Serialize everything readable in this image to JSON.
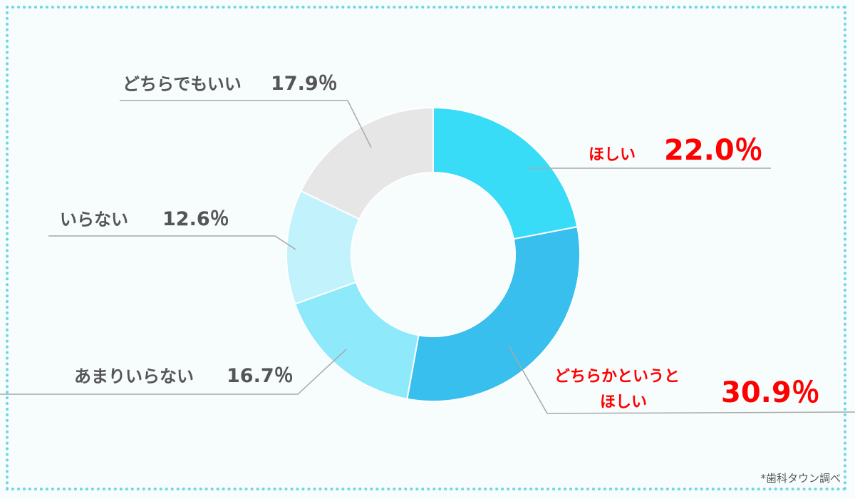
{
  "chart_data": {
    "type": "pie",
    "donut": true,
    "categories": [
      "ほしい",
      "どちらかというと ほしい",
      "あまりいらない",
      "いらない",
      "どちらでもいい"
    ],
    "values": [
      22.0,
      30.9,
      16.7,
      12.6,
      17.9
    ],
    "value_labels": [
      "22.0％",
      "30.9％",
      "16.7％",
      "12.6％",
      "17.9％"
    ],
    "label_lines": [
      [
        "ほしい"
      ],
      [
        "どちらかというと",
        "ほしい"
      ],
      [
        "あまりいらない"
      ],
      [
        "いらない"
      ],
      [
        "どちらでもいい"
      ]
    ],
    "colors": [
      "#38dcf7",
      "#38bfed",
      "#8ee9fa",
      "#c2f2fb",
      "#e6e6e6"
    ],
    "label_colors": [
      "#ff0000",
      "#ff0000",
      "#555555",
      "#555555",
      "#555555"
    ],
    "start": "12 o'clock",
    "direction": "clockwise"
  },
  "footnote": "*歯科タウン調べ"
}
